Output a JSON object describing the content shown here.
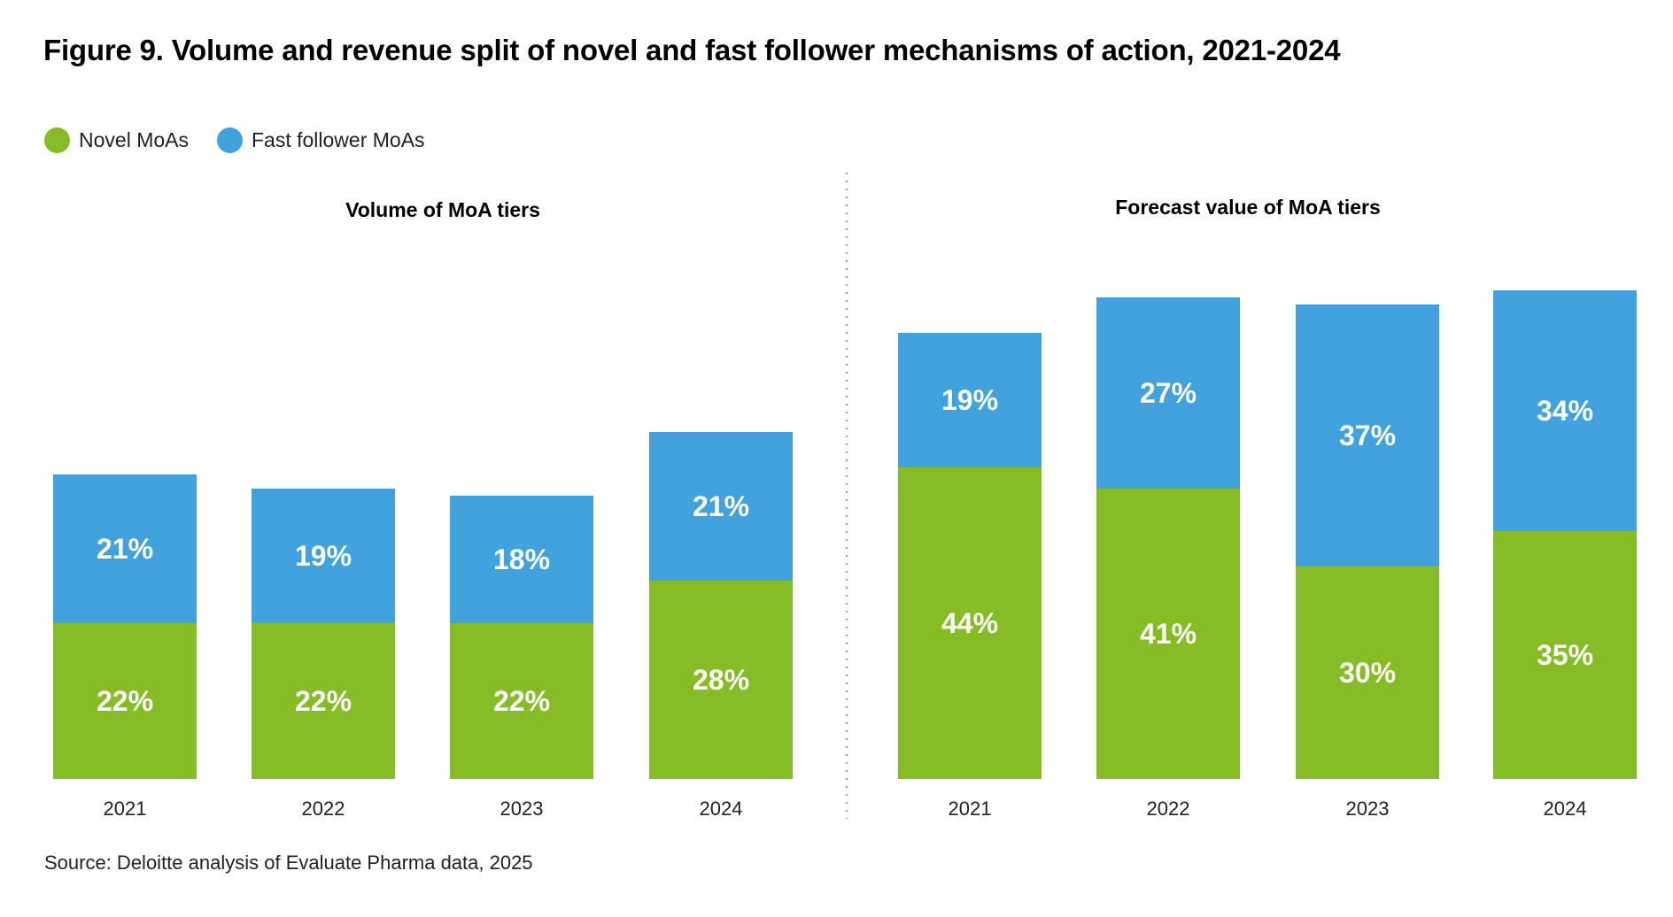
{
  "title": "Figure 9. Volume and revenue split of novel and fast follower mechanisms of action, 2021-2024",
  "source": "Source: Deloitte analysis of Evaluate Pharma data, 2025",
  "colors": {
    "novel": "#86BC25",
    "fast_follower": "#41A2DD"
  },
  "legend": [
    {
      "label": "Novel MoAs",
      "color": "#86BC25"
    },
    {
      "label": "Fast follower MoAs",
      "color": "#41A2DD"
    }
  ],
  "chart_data": [
    {
      "type": "bar",
      "stacked": true,
      "title": "Volume of MoA tiers",
      "categories": [
        "2021",
        "2022",
        "2023",
        "2024"
      ],
      "series": [
        {
          "name": "Novel MoAs",
          "values": [
            22,
            22,
            22,
            28
          ],
          "labels": [
            "22%",
            "22%",
            "22%",
            "28%"
          ]
        },
        {
          "name": "Fast follower MoAs",
          "values": [
            21,
            19,
            18,
            21
          ],
          "labels": [
            "21%",
            "19%",
            "18%",
            "21%"
          ]
        }
      ]
    },
    {
      "type": "bar",
      "stacked": true,
      "title": "Forecast value of MoA tiers",
      "categories": [
        "2021",
        "2022",
        "2023",
        "2024"
      ],
      "series": [
        {
          "name": "Novel MoAs",
          "values": [
            44,
            41,
            30,
            35
          ],
          "labels": [
            "44%",
            "41%",
            "30%",
            "35%"
          ]
        },
        {
          "name": "Fast follower MoAs",
          "values": [
            19,
            27,
            37,
            34
          ],
          "labels": [
            "19%",
            "27%",
            "37%",
            "34%"
          ]
        }
      ]
    }
  ]
}
